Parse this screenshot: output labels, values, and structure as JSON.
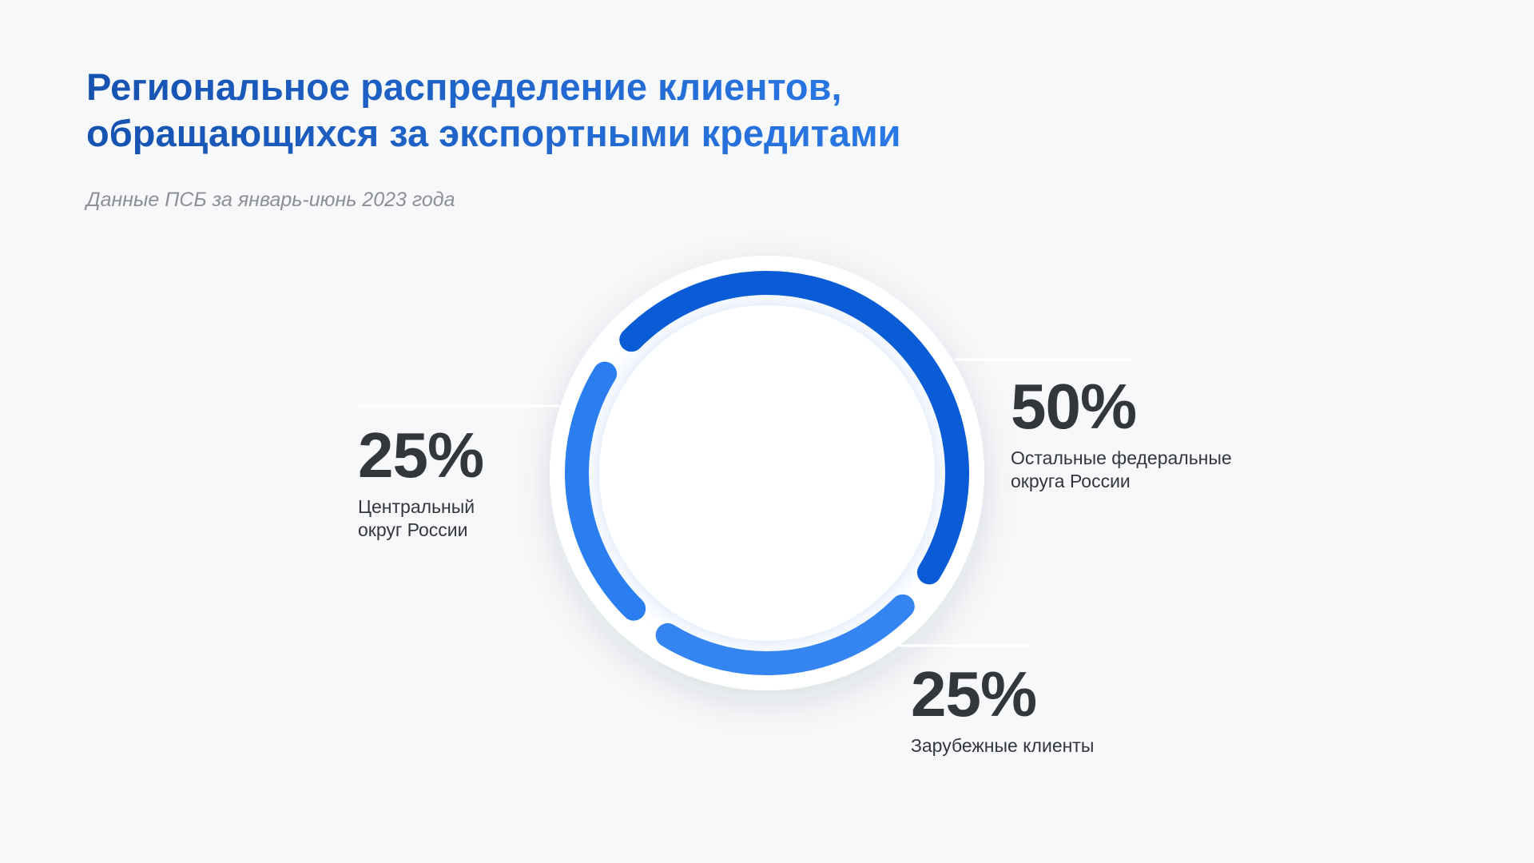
{
  "header": {
    "title_line1": "Региональное распределение клиентов,",
    "title_line2": "обращающихся за экспортными кредитами",
    "subtitle": "Данные ПСБ за январь-июнь 2023 года"
  },
  "chart_data": {
    "type": "pie",
    "style": "donut-ring",
    "categories": [
      "Остальные федеральные округа России",
      "Зарубежные клиенты",
      "Центральный округ России"
    ],
    "values": [
      50,
      25,
      25
    ],
    "unit": "%",
    "colors": [
      "#0a5bd6",
      "#3485f2",
      "#2a7ef0"
    ],
    "labels": {
      "other": {
        "value": "50%",
        "text": "Остальные федеральные\nокруга России"
      },
      "foreign": {
        "value": "25%",
        "text": "Зарубежные клиенты"
      },
      "central": {
        "value": "25%",
        "text": "Центральный\nокруг России"
      }
    }
  }
}
